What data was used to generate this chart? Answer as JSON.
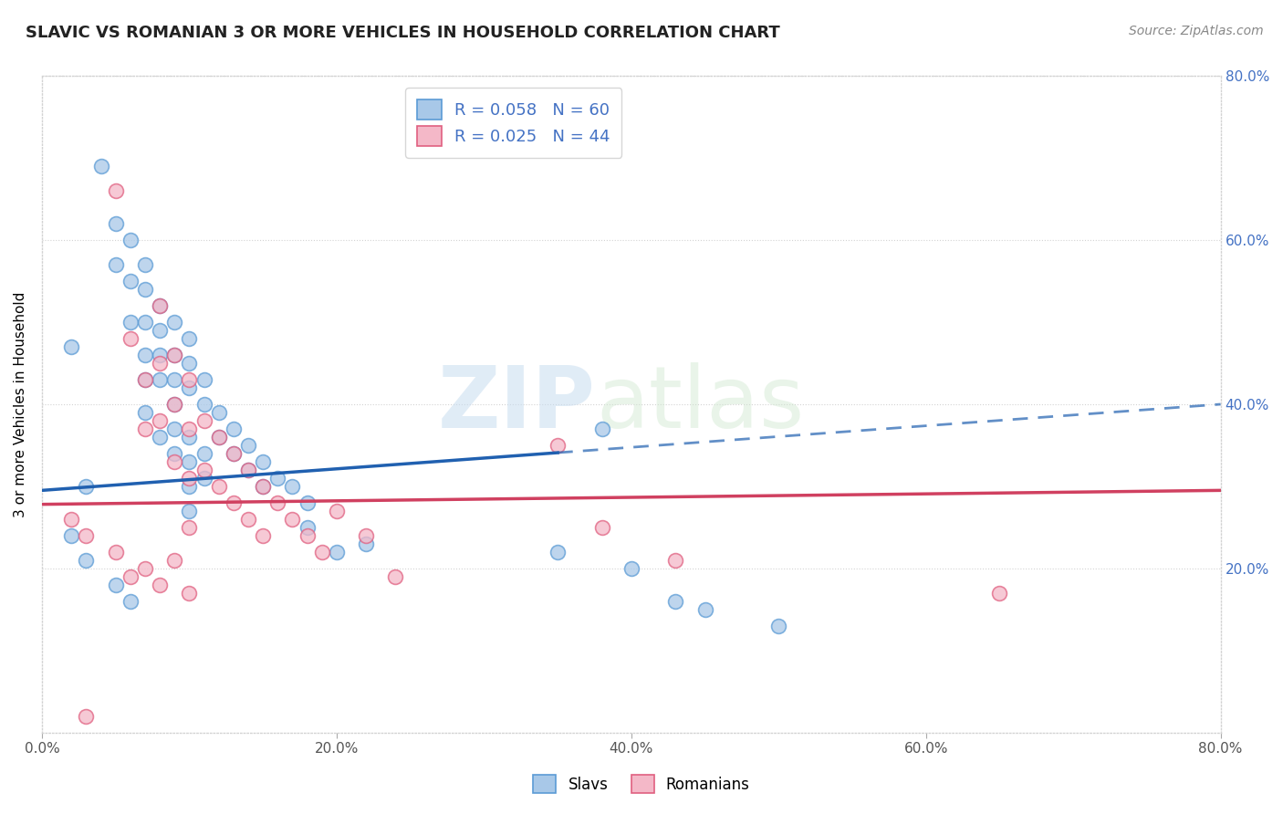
{
  "title": "SLAVIC VS ROMANIAN 3 OR MORE VEHICLES IN HOUSEHOLD CORRELATION CHART",
  "source_text": "Source: ZipAtlas.com",
  "ylabel": "3 or more Vehicles in Household",
  "xlim": [
    0.0,
    0.8
  ],
  "ylim": [
    0.0,
    0.8
  ],
  "xtick_labels": [
    "0.0%",
    "20.0%",
    "40.0%",
    "60.0%",
    "80.0%"
  ],
  "xtick_vals": [
    0.0,
    0.2,
    0.4,
    0.6,
    0.8
  ],
  "right_ytick_labels": [
    "20.0%",
    "40.0%",
    "60.0%",
    "80.0%"
  ],
  "right_ytick_vals": [
    0.2,
    0.4,
    0.6,
    0.8
  ],
  "slavs_color": "#a8c8e8",
  "slavs_edge_color": "#5b9bd5",
  "romanians_color": "#f4b8c8",
  "romanians_edge_color": "#e06080",
  "slavs_line_color": "#2060b0",
  "romanians_line_color": "#d04060",
  "slavs_R": 0.058,
  "slavs_N": 60,
  "romanians_R": 0.025,
  "romanians_N": 44,
  "watermark_zip": "ZIP",
  "watermark_atlas": "atlas",
  "legend_label_slavs": "Slavs",
  "legend_label_romanians": "Romanians",
  "slavs_line_solid_end": 0.35,
  "slavs_line_y0": 0.295,
  "slavs_line_y1": 0.4,
  "romanians_line_y0": 0.278,
  "romanians_line_y1": 0.295,
  "slavs_x": [
    0.02,
    0.03,
    0.04,
    0.05,
    0.05,
    0.06,
    0.06,
    0.06,
    0.07,
    0.07,
    0.07,
    0.07,
    0.07,
    0.07,
    0.08,
    0.08,
    0.08,
    0.08,
    0.08,
    0.09,
    0.09,
    0.09,
    0.09,
    0.09,
    0.09,
    0.1,
    0.1,
    0.1,
    0.1,
    0.1,
    0.1,
    0.1,
    0.11,
    0.11,
    0.11,
    0.11,
    0.12,
    0.12,
    0.13,
    0.13,
    0.14,
    0.14,
    0.15,
    0.15,
    0.16,
    0.17,
    0.18,
    0.18,
    0.2,
    0.22,
    0.35,
    0.38,
    0.4,
    0.43,
    0.45,
    0.5,
    0.02,
    0.03,
    0.05,
    0.06
  ],
  "slavs_y": [
    0.47,
    0.3,
    0.69,
    0.62,
    0.57,
    0.6,
    0.55,
    0.5,
    0.57,
    0.54,
    0.5,
    0.46,
    0.43,
    0.39,
    0.52,
    0.49,
    0.46,
    0.43,
    0.36,
    0.5,
    0.46,
    0.43,
    0.4,
    0.37,
    0.34,
    0.48,
    0.45,
    0.42,
    0.36,
    0.33,
    0.3,
    0.27,
    0.43,
    0.4,
    0.34,
    0.31,
    0.39,
    0.36,
    0.37,
    0.34,
    0.35,
    0.32,
    0.33,
    0.3,
    0.31,
    0.3,
    0.28,
    0.25,
    0.22,
    0.23,
    0.22,
    0.37,
    0.2,
    0.16,
    0.15,
    0.13,
    0.24,
    0.21,
    0.18,
    0.16
  ],
  "romanians_x": [
    0.02,
    0.03,
    0.05,
    0.06,
    0.07,
    0.07,
    0.08,
    0.08,
    0.08,
    0.09,
    0.09,
    0.09,
    0.1,
    0.1,
    0.1,
    0.1,
    0.11,
    0.11,
    0.12,
    0.12,
    0.13,
    0.13,
    0.14,
    0.14,
    0.15,
    0.15,
    0.16,
    0.17,
    0.18,
    0.19,
    0.2,
    0.22,
    0.24,
    0.35,
    0.38,
    0.43,
    0.05,
    0.06,
    0.07,
    0.08,
    0.09,
    0.1,
    0.65,
    0.03
  ],
  "romanians_y": [
    0.26,
    0.24,
    0.66,
    0.48,
    0.43,
    0.37,
    0.52,
    0.45,
    0.38,
    0.46,
    0.4,
    0.33,
    0.43,
    0.37,
    0.31,
    0.25,
    0.38,
    0.32,
    0.36,
    0.3,
    0.34,
    0.28,
    0.32,
    0.26,
    0.3,
    0.24,
    0.28,
    0.26,
    0.24,
    0.22,
    0.27,
    0.24,
    0.19,
    0.35,
    0.25,
    0.21,
    0.22,
    0.19,
    0.2,
    0.18,
    0.21,
    0.17,
    0.17,
    0.02
  ]
}
